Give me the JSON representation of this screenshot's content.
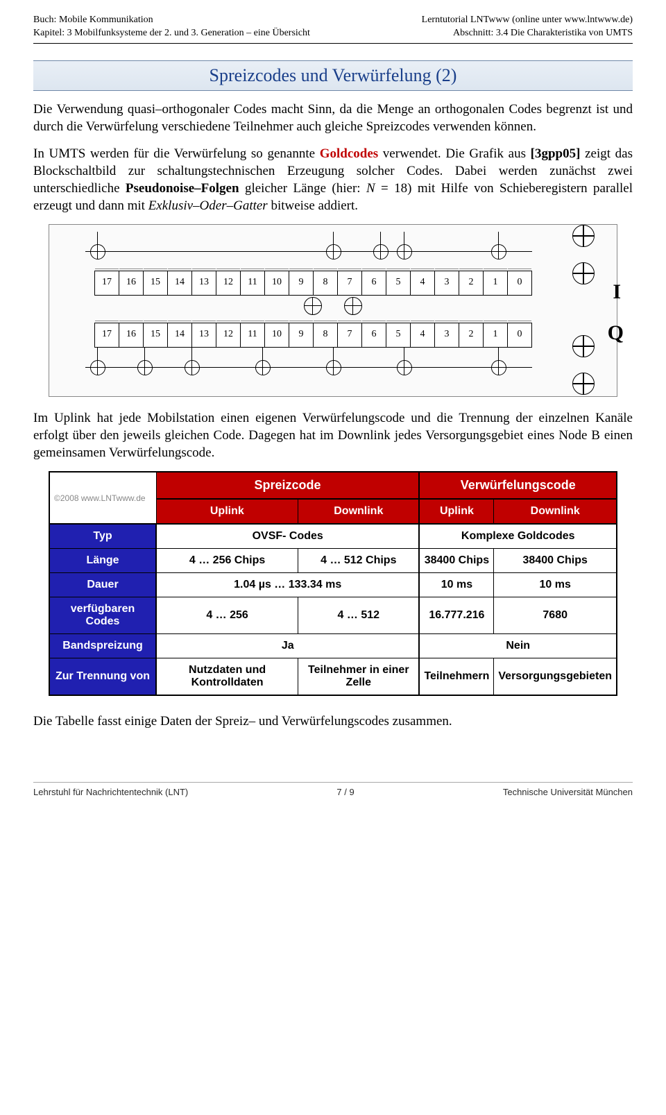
{
  "header": {
    "left1": "Buch: Mobile Kommunikation",
    "left2": "Kapitel: 3 Mobilfunksysteme der 2. und 3. Generation – eine Übersicht",
    "right1": "Lerntutorial LNTwww (online unter www.lntwww.de)",
    "right2": "Abschnitt: 3.4 Die Charakteristika von UMTS"
  },
  "title": "Spreizcodes und Verwürfelung (2)",
  "para1": {
    "t1": "Die Verwendung quasi–orthogonaler Codes macht Sinn, da die Menge an orthogonalen Codes begrenzt ist und durch die Verwürfelung verschiedene Teilnehmer auch gleiche Spreizcodes verwenden können."
  },
  "para2": {
    "a": "In UMTS werden für die Verwürfelung so genannte ",
    "gold": "Goldcodes",
    "b": " verwendet. Die Grafik aus ",
    "ref": "[3gpp05]",
    "c": " zeigt das Blockschaltbild zur schaltungstechnischen Erzeugung solcher Codes. Dabei werden zunächst zwei unterschiedliche ",
    "pn": "Pseudonoise–Folgen",
    "d": " gleicher Länge (hier: ",
    "nlabel": "N",
    "e": " = 18) mit Hilfe von Schieberegistern parallel erzeugt und dann mit ",
    "xor": "Exklusiv–Oder–Gatter",
    "f": " bitweise addiert."
  },
  "para3": "Im Uplink hat jede Mobilstation einen eigenen Verwürfelungscode und die Trennung der einzelnen Kanäle erfolgt über den jeweils gleichen Code. Dagegen hat im Downlink jedes Versorgungsgebiet eines Node B einen gemeinsamen Verwürfelungscode.",
  "para4": "Die Tabelle fasst einige Daten der Spreiz– und Verwürfelungscodes zusammen.",
  "circuit": {
    "reg_count": 18,
    "taps_top": [
      17,
      7,
      5,
      4,
      0
    ],
    "taps_bot": [
      17,
      15,
      13,
      10,
      7,
      4,
      0
    ],
    "out_labels": [
      "I",
      "Q"
    ]
  },
  "table": {
    "corner": "©2008\nwww.LNTwww.de",
    "group1": "Spreizcode",
    "group2": "Verwürfelungscode",
    "sub_up": "Uplink",
    "sub_dn": "Downlink",
    "rows": [
      {
        "head": "Typ",
        "c": [
          "OVSF- Codes",
          "",
          "Komplexe Goldcodes",
          ""
        ],
        "spans": [
          2,
          0,
          2,
          0
        ]
      },
      {
        "head": "Länge",
        "c": [
          "4 … 256 Chips",
          "4 … 512 Chips",
          "38400 Chips",
          "38400 Chips"
        ]
      },
      {
        "head": "Dauer",
        "c": [
          "1.04 µs … 133.34 ms",
          "",
          "10 ms",
          "10 ms"
        ],
        "spans": [
          2,
          0,
          1,
          1
        ]
      },
      {
        "head": "verfügbaren Codes",
        "c": [
          "4 … 256",
          "4 … 512",
          "16.777.216",
          "7680"
        ]
      },
      {
        "head": "Bandspreizung",
        "c": [
          "Ja",
          "",
          "Nein",
          ""
        ],
        "spans": [
          2,
          0,
          2,
          0
        ]
      },
      {
        "head": "Zur Trennung von",
        "c": [
          "Nutzdaten und Kontrolldaten",
          "Teilnehmer in einer Zelle",
          "Teilnehmern",
          "Versorgungsgebieten"
        ]
      }
    ]
  },
  "footer": {
    "left": "Lehrstuhl für Nachrichtentechnik (LNT)",
    "center": "7 / 9",
    "right": "Technische Universität München"
  },
  "colors": {
    "title": "#1a3f8a",
    "red": "#c00000",
    "blue": "#2020b0"
  }
}
